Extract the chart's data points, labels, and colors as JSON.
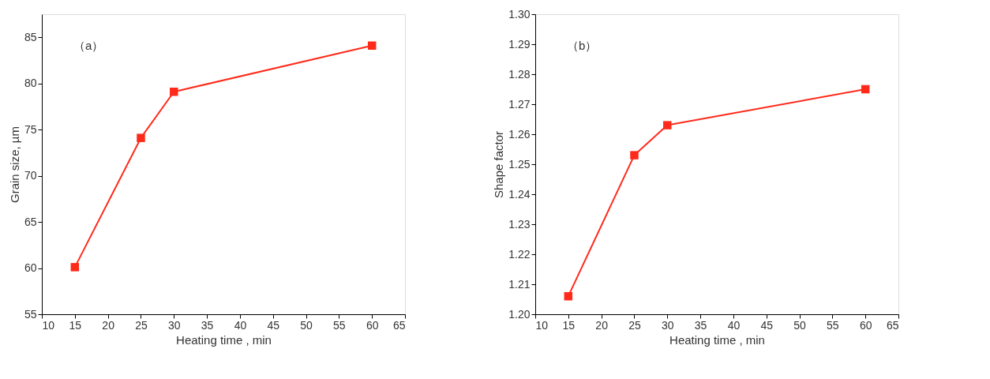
{
  "chart_data": [
    {
      "type": "line",
      "xlabel": "Heating time , min",
      "ylabel": "Grain size, µm",
      "annotations": [
        "（a）"
      ],
      "x": [
        15,
        25,
        30,
        60
      ],
      "series": [
        {
          "color": "#ff2a1a",
          "values": [
            60.1,
            74.1,
            79.1,
            84.1
          ]
        }
      ],
      "xlim": [
        10,
        65
      ],
      "xticks": [
        10,
        15,
        20,
        25,
        30,
        35,
        40,
        45,
        50,
        55,
        60,
        65
      ],
      "ylim": [
        55,
        87.5
      ],
      "yticks": [
        55,
        60,
        65,
        70,
        75,
        80,
        85
      ],
      "marker": "square",
      "line_style": "solid",
      "grid": false
    },
    {
      "type": "line",
      "xlabel": "Heating time , min",
      "ylabel": "Shape factor",
      "annotations": [
        "（b）"
      ],
      "x": [
        15,
        25,
        30,
        60
      ],
      "series": [
        {
          "color": "#ff2a1a",
          "values": [
            1.206,
            1.253,
            1.263,
            1.275
          ]
        }
      ],
      "xlim": [
        10,
        65
      ],
      "xticks": [
        10,
        15,
        20,
        25,
        30,
        35,
        40,
        45,
        50,
        55,
        60,
        65
      ],
      "ylim": [
        1.2,
        1.3
      ],
      "yticks": [
        {
          "value": 1.2,
          "label": "1.20"
        },
        1.21,
        1.22,
        1.23,
        1.24,
        1.25,
        1.26,
        1.27,
        1.28,
        1.29,
        {
          "value": 1.3,
          "label": "1.30"
        }
      ],
      "marker": "square",
      "line_style": "solid",
      "grid": false
    }
  ]
}
